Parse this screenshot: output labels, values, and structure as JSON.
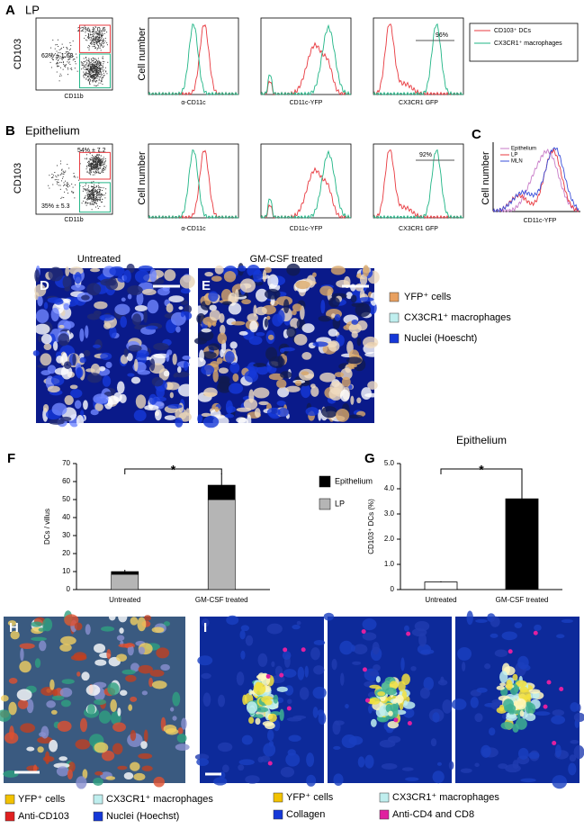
{
  "panels": {
    "A": {
      "label": "A",
      "title": "LP",
      "y_axis": "CD103",
      "x_axis": "CD11b",
      "gate_top": "22% ± 0.6",
      "gate_bottom": "62% ± 1.68",
      "hist_y_axis": "Cell number",
      "hist_x": [
        "α-CD11c",
        "CD11c-YFP",
        "CX3CR1 GFP"
      ],
      "marker": "96%",
      "legend": [
        "CD103⁺ DCs",
        "CX3CR1⁺ macrophages"
      ]
    },
    "B": {
      "label": "B",
      "title": "Epithelium",
      "y_axis": "CD103",
      "x_axis": "CD11b",
      "gate_top": "54% ± 7.2",
      "gate_bottom": "35% ± 5.3",
      "hist_y_axis": "Cell number",
      "hist_x": [
        "α-CD11c",
        "CD11c-YFP",
        "CX3CR1 GFP"
      ],
      "marker": "92%"
    },
    "C": {
      "label": "C",
      "y_axis": "Cell number",
      "x_axis": "CD11c-YFP",
      "legend": [
        "Epithelium",
        "LP",
        "MLN"
      ]
    },
    "D": {
      "label": "D",
      "title": "Untreated"
    },
    "E": {
      "label": "E",
      "title": "GM-CSF treated",
      "legend": [
        "YFP⁺ cells",
        "CX3CR1⁺ macrophages",
        "Nuclei (Hoescht)"
      ]
    },
    "H": {
      "label": "H",
      "legend": [
        "YFP⁺ cells",
        "CX3CR1⁺ macrophages",
        "Anti-CD103",
        "Nuclei (Hoechst)"
      ]
    },
    "I": {
      "label": "I",
      "legend": [
        "YFP⁺ cells",
        "CX3CR1⁺ macrophages",
        "Collagen",
        "Anti-CD4 and CD8"
      ]
    }
  },
  "chart_data": [
    {
      "type": "stacked-bar",
      "label": "F",
      "y_label": "DCs / villus",
      "annotation": "*",
      "categories": [
        "Untreated",
        "GM-CSF treated"
      ],
      "series": [
        {
          "name": "LP",
          "color": "#b5b5b5",
          "values": [
            8.5,
            50
          ]
        },
        {
          "name": "Epithelium",
          "color": "#000000",
          "values": [
            1.5,
            8
          ],
          "errors": [
            1,
            6.5
          ]
        }
      ],
      "ylim": [
        0,
        70
      ],
      "yticks": [
        0,
        10,
        20,
        30,
        40,
        50,
        60,
        70
      ]
    },
    {
      "type": "bar",
      "label": "G",
      "title": "Epithelium",
      "y_label": "CD103⁺ DCs (%)",
      "annotation": "*",
      "categories": [
        "Untreated",
        "GM-CSF treated"
      ],
      "values": [
        0.3,
        3.6
      ],
      "errors": [
        0.03,
        1.15
      ],
      "colors": [
        "#ffffff",
        "#000000"
      ],
      "ylim": [
        0,
        5
      ],
      "yticks": [
        0,
        {
          "value": 1,
          "label": "1.0"
        },
        {
          "value": 2,
          "label": "2.0"
        },
        {
          "value": 3,
          "label": "3.0"
        },
        {
          "value": 4,
          "label": "4.0"
        },
        {
          "value": 5,
          "label": "5.0"
        }
      ]
    }
  ]
}
